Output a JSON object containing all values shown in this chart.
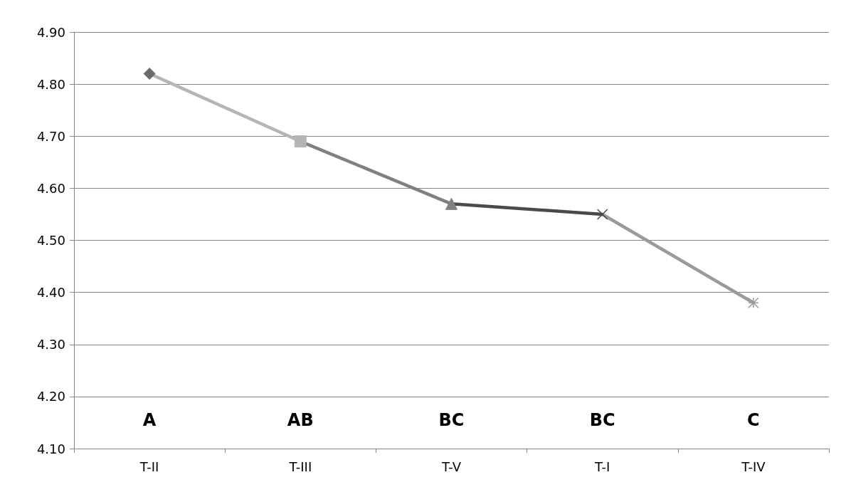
{
  "chart_data": {
    "type": "line",
    "categories": [
      "T-II",
      "T-III",
      "T-V",
      "T-I",
      "T-IV"
    ],
    "series": [
      {
        "values": [
          4.82,
          4.69,
          4.57,
          4.55,
          4.38
        ],
        "colors": [
          "#6b6b6b",
          "#b5b5b5",
          "#808080",
          "#4a4a4a",
          "#9a9a9a"
        ]
      }
    ],
    "ylim": [
      4.1,
      4.9
    ],
    "yticks": [
      {
        "value": 4.1,
        "label": "4.10"
      },
      {
        "value": 4.2,
        "label": "4.20"
      },
      {
        "value": 4.3,
        "label": "4.30"
      },
      {
        "value": 4.4,
        "label": "4.40"
      },
      {
        "value": 4.5,
        "label": "4.50"
      },
      {
        "value": 4.6,
        "label": "4.60"
      },
      {
        "value": 4.7,
        "label": "4.70"
      },
      {
        "value": 4.8,
        "label": "4.80"
      },
      {
        "value": 4.9,
        "label": "4.90"
      }
    ],
    "grid": "y",
    "marker": [
      "diamond",
      "square",
      "triangle",
      "cross",
      "star"
    ],
    "line_style": "solid",
    "annotations": [
      "A",
      "AB",
      "BC",
      "BC",
      "C"
    ]
  }
}
